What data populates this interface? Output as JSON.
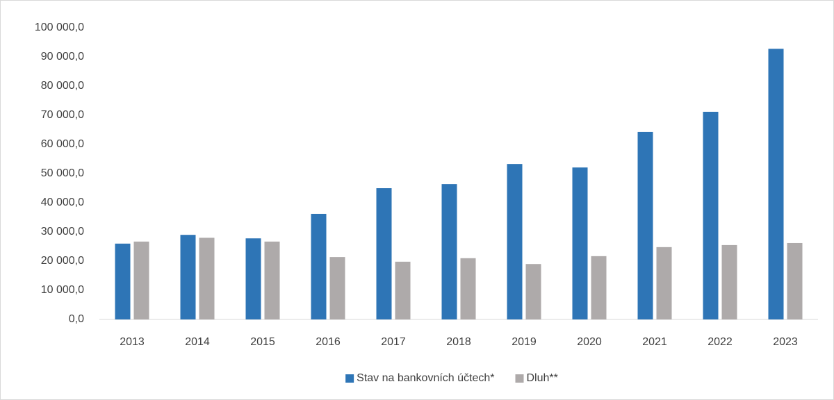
{
  "chart_data": {
    "type": "bar",
    "categories": [
      "2013",
      "2014",
      "2015",
      "2016",
      "2017",
      "2018",
      "2019",
      "2020",
      "2021",
      "2022",
      "2023"
    ],
    "series": [
      {
        "name": "Stav na bankovních účtech*",
        "color": "#2e75b6",
        "values": [
          26000,
          29000,
          27800,
          36200,
          45000,
          46400,
          53300,
          52100,
          64300,
          71200,
          92800
        ]
      },
      {
        "name": "Dluh**",
        "color": "#aeaaaa",
        "values": [
          26700,
          28000,
          26700,
          21400,
          19800,
          21000,
          19000,
          21700,
          24800,
          25500,
          26200
        ]
      }
    ],
    "ylim": [
      0,
      100000
    ],
    "yticks": [
      {
        "value": 0,
        "label": "0,0"
      },
      {
        "value": 10000,
        "label": "10 000,0"
      },
      {
        "value": 20000,
        "label": "20 000,0"
      },
      {
        "value": 30000,
        "label": "30 000,0"
      },
      {
        "value": 40000,
        "label": "40 000,0"
      },
      {
        "value": 50000,
        "label": "50 000,0"
      },
      {
        "value": 60000,
        "label": "60 000,0"
      },
      {
        "value": 70000,
        "label": "70 000,0"
      },
      {
        "value": 80000,
        "label": "80 000,0"
      },
      {
        "value": 90000,
        "label": "90 000,0"
      },
      {
        "value": 100000,
        "label": "100 000,0"
      }
    ],
    "grid": false,
    "legend": "bottom"
  }
}
